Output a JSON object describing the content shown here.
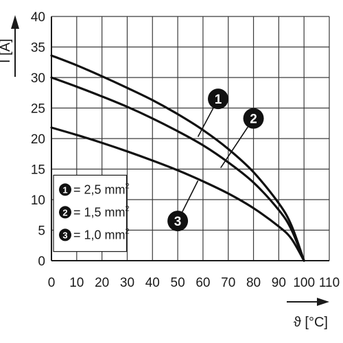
{
  "chart_data": {
    "type": "line",
    "xlabel": "ϑ [°C]",
    "ylabel": "I [A]",
    "xlim": [
      0,
      110
    ],
    "ylim": [
      0,
      40
    ],
    "xticks": [
      0,
      10,
      20,
      30,
      40,
      50,
      60,
      70,
      80,
      90,
      100,
      110
    ],
    "yticks": [
      0,
      5,
      10,
      15,
      20,
      25,
      30,
      35,
      40
    ],
    "grid": true,
    "legend_position": "bottom-left",
    "series": [
      {
        "name": "1",
        "legend_text": "= 2,5 mm",
        "legend_sup": "2",
        "x": [
          0,
          10,
          20,
          30,
          40,
          50,
          60,
          70,
          80,
          90,
          95,
          100
        ],
        "y": [
          33.6,
          32.0,
          30.2,
          28.3,
          26.3,
          24.0,
          21.4,
          18.3,
          14.5,
          9.4,
          5.8,
          0
        ]
      },
      {
        "name": "2",
        "legend_text": "= 1,5 mm",
        "legend_sup": "2",
        "x": [
          0,
          10,
          20,
          30,
          40,
          50,
          60,
          70,
          80,
          90,
          95,
          100
        ],
        "y": [
          30.0,
          28.5,
          26.9,
          25.2,
          23.3,
          21.2,
          18.9,
          16.1,
          12.8,
          8.3,
          5.1,
          0
        ]
      },
      {
        "name": "3",
        "legend_text": "= 1,0 mm",
        "legend_sup": "2",
        "x": [
          0,
          10,
          20,
          30,
          40,
          50,
          60,
          70,
          80,
          90,
          95,
          100
        ],
        "y": [
          21.8,
          20.6,
          19.3,
          17.9,
          16.4,
          14.8,
          13.0,
          11.0,
          8.6,
          5.6,
          3.6,
          0
        ]
      }
    ],
    "callouts": [
      {
        "label": "1",
        "x": 66,
        "y": 26.5,
        "target": [
          58,
          20.3
        ]
      },
      {
        "label": "2",
        "x": 80,
        "y": 23.3,
        "target": [
          67,
          15.2
        ]
      },
      {
        "label": "3",
        "x": 50,
        "y": 6.5,
        "target": [
          58,
          13.1
        ]
      }
    ]
  }
}
